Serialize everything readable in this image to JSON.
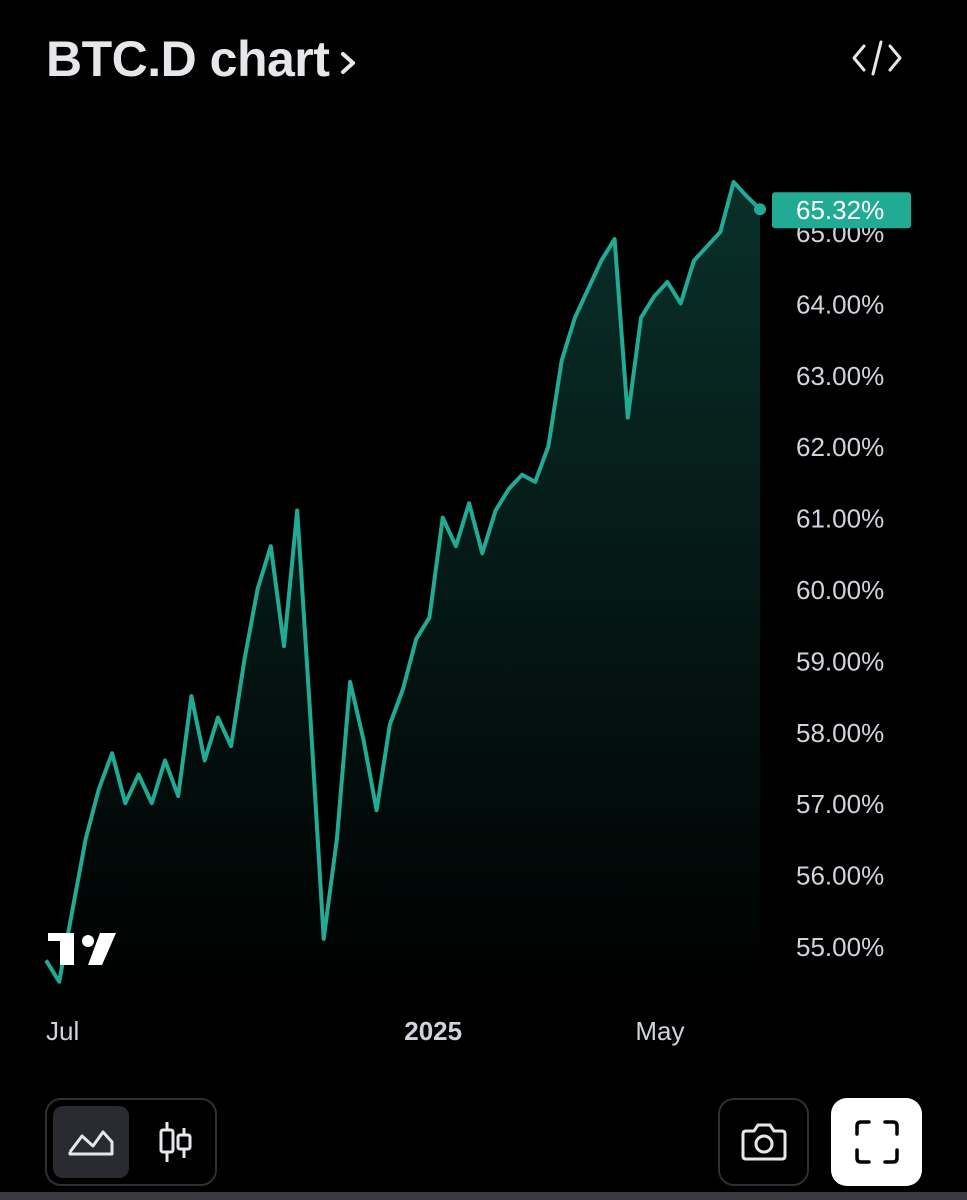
{
  "header": {
    "title": "BTC.D chart",
    "title_chevron_icon": "chevron-right-icon",
    "embed_icon": "code-embed-icon"
  },
  "colors": {
    "background": "#000000",
    "line": "#22ab94",
    "price_tag_bg": "#22ab94",
    "axis_text": "#d1d4dc"
  },
  "chart_data": {
    "type": "area",
    "title": "BTC.D chart",
    "x_labels": [
      "Jul",
      "2025",
      "May"
    ],
    "y_tick_labels": [
      "65.00%",
      "64.00%",
      "63.00%",
      "62.00%",
      "61.00%",
      "60.00%",
      "59.00%",
      "58.00%",
      "57.00%",
      "56.00%",
      "55.00%"
    ],
    "ylim": [
      54.5,
      66.0
    ],
    "last_value_label": "65.32%",
    "last_value": 65.32,
    "x": [
      "2024-06-10",
      "2024-06-17",
      "2024-06-24",
      "2024-07-01",
      "2024-07-08",
      "2024-07-15",
      "2024-07-22",
      "2024-07-29",
      "2024-08-05",
      "2024-08-12",
      "2024-08-19",
      "2024-08-26",
      "2024-09-02",
      "2024-09-09",
      "2024-09-16",
      "2024-09-23",
      "2024-09-30",
      "2024-10-07",
      "2024-10-14",
      "2024-10-21",
      "2024-10-28",
      "2024-11-04",
      "2024-11-11",
      "2024-11-18",
      "2024-11-25",
      "2024-12-02",
      "2024-12-09",
      "2024-12-16",
      "2024-12-23",
      "2024-12-30",
      "2025-01-06",
      "2025-01-13",
      "2025-01-20",
      "2025-01-27",
      "2025-02-03",
      "2025-02-10",
      "2025-02-17",
      "2025-02-24",
      "2025-03-03",
      "2025-03-10",
      "2025-03-17",
      "2025-03-24",
      "2025-03-31",
      "2025-04-07",
      "2025-04-14",
      "2025-04-21",
      "2025-04-28",
      "2025-05-05",
      "2025-05-12",
      "2025-05-19",
      "2025-05-26",
      "2025-06-02",
      "2025-06-09",
      "2025-06-16",
      "2025-06-23"
    ],
    "series": [
      {
        "values": [
          54.8,
          54.5,
          55.5,
          56.5,
          57.2,
          57.7,
          57.0,
          57.4,
          57.0,
          57.6,
          57.1,
          58.5,
          57.6,
          58.2,
          57.8,
          59.0,
          60.0,
          60.6,
          59.2,
          61.1,
          58.2,
          55.1,
          56.5,
          58.7,
          57.9,
          56.9,
          58.1,
          58.6,
          59.3,
          59.6,
          61.0,
          60.6,
          61.2,
          60.5,
          61.1,
          61.4,
          61.6,
          61.5,
          62.0,
          63.2,
          63.8,
          64.2,
          64.6,
          64.9,
          62.4,
          63.8,
          64.1,
          64.3,
          64.0,
          64.6,
          64.8,
          65.0,
          65.7,
          65.5,
          65.32
        ]
      }
    ],
    "grid": false,
    "price_axis_position": "right"
  },
  "toolbar": {
    "area_chart_icon": "area-chart-icon",
    "candles_icon": "candlestick-icon",
    "camera_icon": "camera-icon",
    "fullscreen_icon": "fullscreen-icon"
  },
  "logo": {
    "name": "tradingview-logo"
  }
}
